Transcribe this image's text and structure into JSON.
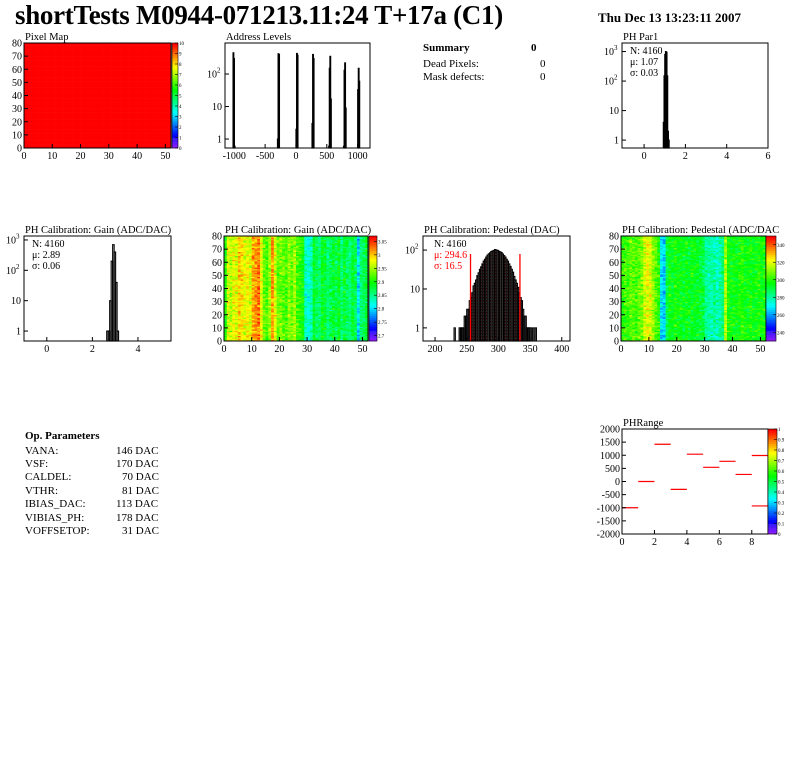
{
  "header": {
    "title": "shortTests M0944-071213.11:24 T+17a (C1)",
    "date": "Thu Dec 13 13:23:11 2007"
  },
  "summary": {
    "title": "Summary",
    "value": "0",
    "rows": [
      {
        "label": "Dead Pixels:",
        "value": "0"
      },
      {
        "label": "Mask defects:",
        "value": "0"
      }
    ]
  },
  "op_params": {
    "title": "Op. Parameters",
    "rows": [
      {
        "label": "VANA:",
        "value": "146 DAC"
      },
      {
        "label": "VSF:",
        "value": "170 DAC"
      },
      {
        "label": "CALDEL:",
        "value": "70 DAC"
      },
      {
        "label": "VTHR:",
        "value": "81 DAC"
      },
      {
        "label": "IBIAS_DAC:",
        "value": "113 DAC"
      },
      {
        "label": "VIBIAS_PH:",
        "value": "178 DAC"
      },
      {
        "label": "VOFFSETOP:",
        "value": "31 DAC"
      }
    ]
  },
  "chart_data": [
    {
      "id": "pixel_map",
      "type": "heatmap",
      "title": "Pixel Map",
      "xlim": [
        0,
        52
      ],
      "ylim": [
        0,
        80
      ],
      "zlim": [
        0,
        10
      ],
      "xticks": [
        "0",
        "10",
        "20",
        "30",
        "40",
        "50"
      ],
      "yticks": [
        "0",
        "10",
        "20",
        "30",
        "40",
        "50",
        "60",
        "70",
        "80"
      ],
      "zticks": [
        "0",
        "1",
        "2",
        "3",
        "4",
        "5",
        "6",
        "7",
        "8",
        "9",
        "10"
      ],
      "columns": 52,
      "rows": 80,
      "uniform_value": 10
    },
    {
      "id": "address_levels",
      "type": "bar",
      "title": "Address Levels",
      "log_y": true,
      "xlim": [
        -1150,
        1200
      ],
      "ylim": [
        0.53,
        900
      ],
      "xticks": [
        "-1000",
        "-500",
        "0",
        "500",
        "1000"
      ],
      "yticks": [
        {
          "v": 1,
          "b": "1",
          "e": ""
        },
        {
          "v": 10,
          "b": "10",
          "e": ""
        },
        {
          "v": 100,
          "b": "10",
          "e": "2"
        }
      ],
      "bin_width": 10,
      "bins": [
        [
          -1020,
          450
        ],
        [
          -1010,
          300
        ],
        [
          -1000,
          0.6
        ],
        [
          -300,
          1
        ],
        [
          -290,
          420
        ],
        [
          -280,
          400
        ],
        [
          0,
          2
        ],
        [
          10,
          430
        ],
        [
          20,
          380
        ],
        [
          260,
          3
        ],
        [
          270,
          400
        ],
        [
          280,
          300
        ],
        [
          530,
          0.6
        ],
        [
          540,
          150
        ],
        [
          550,
          350
        ],
        [
          560,
          17
        ],
        [
          770,
          0.6
        ],
        [
          780,
          130
        ],
        [
          790,
          220
        ],
        [
          800,
          9
        ],
        [
          1000,
          33
        ],
        [
          1010,
          150
        ],
        [
          1020,
          60
        ]
      ]
    },
    {
      "id": "ph_par1",
      "type": "bar",
      "title": "PH Par1",
      "log_y": true,
      "xlim": [
        -1.07,
        6
      ],
      "ylim": [
        0.54,
        1950
      ],
      "xticks": [
        "0",
        "2",
        "4",
        "6"
      ],
      "yticks": [
        {
          "v": 1,
          "b": "1",
          "e": ""
        },
        {
          "v": 10,
          "b": "10",
          "e": ""
        },
        {
          "v": 100,
          "b": "10",
          "e": "2"
        },
        {
          "v": 1000,
          "b": "10",
          "e": "3"
        }
      ],
      "stats": [
        "N: 4160",
        "μ: 1.07",
        "σ: 0.03"
      ],
      "bin_width": 0.035,
      "bins": [
        [
          0.93,
          4
        ],
        [
          0.965,
          150
        ],
        [
          1.0,
          800
        ],
        [
          1.035,
          1000
        ],
        [
          1.07,
          950
        ],
        [
          1.105,
          150
        ],
        [
          1.14,
          2
        ],
        [
          1.175,
          1
        ]
      ]
    },
    {
      "id": "gain_hist",
      "type": "bar",
      "title": "PH Calibration: Gain (ADC/DAC)",
      "log_y": true,
      "xlim": [
        -1,
        5.45
      ],
      "ylim": [
        0.47,
        1350
      ],
      "xticks": [
        "0",
        "2",
        "4"
      ],
      "yticks": [
        {
          "v": 1,
          "b": "1",
          "e": ""
        },
        {
          "v": 10,
          "b": "10",
          "e": ""
        },
        {
          "v": 100,
          "b": "10",
          "e": "2"
        },
        {
          "v": 1000,
          "b": "10",
          "e": "3"
        }
      ],
      "stats": [
        "N: 4160",
        "μ: 2.89",
        "σ: 0.06"
      ],
      "bin_width": 0.065,
      "bins": [
        [
          2.63,
          1
        ],
        [
          2.695,
          1
        ],
        [
          2.76,
          10
        ],
        [
          2.825,
          200
        ],
        [
          2.89,
          700
        ],
        [
          2.955,
          400
        ],
        [
          3.02,
          40
        ],
        [
          3.085,
          1
        ]
      ]
    },
    {
      "id": "gain_map",
      "type": "heatmap",
      "title": "PH Calibration: Gain (ADC/DAC)",
      "xlim": [
        0,
        52
      ],
      "ylim": [
        0,
        80
      ],
      "zlim": [
        2.68,
        3.07
      ],
      "xticks": [
        "0",
        "10",
        "20",
        "30",
        "40",
        "50"
      ],
      "yticks": [
        "0",
        "10",
        "20",
        "30",
        "40",
        "50",
        "60",
        "70",
        "80"
      ],
      "zticks": [
        "2.7",
        "2.75",
        "2.8",
        "2.85",
        "2.9",
        "2.95",
        "3",
        "3.05"
      ],
      "columns": 52,
      "rows": 80,
      "column_means": [
        2.9,
        2.97,
        2.96,
        2.98,
        2.97,
        3.0,
        2.99,
        2.97,
        2.98,
        2.97,
        3.01,
        3.02,
        3.03,
        2.98,
        2.93,
        2.92,
        2.95,
        3.02,
        2.97,
        2.93,
        2.94,
        2.93,
        2.92,
        2.94,
        2.93,
        2.95,
        2.92,
        2.91,
        2.9,
        2.83,
        2.82,
        2.84,
        2.88,
        2.87,
        2.86,
        2.89,
        2.88,
        2.86,
        2.87,
        2.88,
        2.87,
        2.89,
        2.86,
        2.88,
        2.87,
        2.86,
        2.88,
        2.87,
        2.8,
        2.86,
        2.87,
        2.88
      ]
    },
    {
      "id": "pedestal_hist",
      "type": "bar",
      "title": "PH Calibration: Pedestal (DAC)",
      "log_y": true,
      "xlim": [
        181,
        413
      ],
      "ylim": [
        0.46,
        230
      ],
      "xticks": [
        "200",
        "250",
        "300",
        "350",
        "400"
      ],
      "yticks": [
        {
          "v": 1,
          "b": "1",
          "e": ""
        },
        {
          "v": 10,
          "b": "10",
          "e": ""
        },
        {
          "v": 100,
          "b": "10",
          "e": "2"
        }
      ],
      "stats": [
        "N: 4160",
        "μ: 294.6",
        "σ: 16.5"
      ],
      "fit_range": [
        256,
        334
      ],
      "bin_width": 2,
      "bins": [
        [
          230,
          1
        ],
        [
          238,
          1
        ],
        [
          240,
          1
        ],
        [
          242,
          1
        ],
        [
          244,
          1
        ],
        [
          246,
          2
        ],
        [
          248,
          2
        ],
        [
          250,
          3
        ],
        [
          252,
          3
        ],
        [
          254,
          5
        ],
        [
          256,
          6
        ],
        [
          258,
          8
        ],
        [
          260,
          12
        ],
        [
          262,
          14
        ],
        [
          264,
          17
        ],
        [
          266,
          22
        ],
        [
          268,
          26
        ],
        [
          270,
          32
        ],
        [
          272,
          37
        ],
        [
          274,
          44
        ],
        [
          276,
          52
        ],
        [
          278,
          58
        ],
        [
          280,
          66
        ],
        [
          282,
          74
        ],
        [
          284,
          80
        ],
        [
          286,
          85
        ],
        [
          288,
          92
        ],
        [
          290,
          95
        ],
        [
          292,
          98
        ],
        [
          294,
          103
        ],
        [
          296,
          100
        ],
        [
          298,
          98
        ],
        [
          300,
          93
        ],
        [
          302,
          90
        ],
        [
          304,
          86
        ],
        [
          306,
          79
        ],
        [
          308,
          72
        ],
        [
          310,
          66
        ],
        [
          312,
          58
        ],
        [
          314,
          52
        ],
        [
          316,
          44
        ],
        [
          318,
          38
        ],
        [
          320,
          32
        ],
        [
          322,
          27
        ],
        [
          324,
          21
        ],
        [
          326,
          17
        ],
        [
          328,
          14
        ],
        [
          330,
          11
        ],
        [
          332,
          8
        ],
        [
          334,
          6
        ],
        [
          336,
          5
        ],
        [
          338,
          3
        ],
        [
          340,
          2
        ],
        [
          342,
          2
        ],
        [
          344,
          1
        ],
        [
          346,
          1
        ],
        [
          348,
          1
        ],
        [
          350,
          1
        ],
        [
          354,
          1
        ],
        [
          358,
          1
        ]
      ]
    },
    {
      "id": "pedestal_map",
      "type": "heatmap",
      "title": "PH Calibration: Pedestal (ADC/DAC",
      "xlim": [
        0,
        52
      ],
      "ylim": [
        0,
        80
      ],
      "zlim": [
        230,
        350
      ],
      "xticks": [
        "0",
        "10",
        "20",
        "30",
        "40",
        "50"
      ],
      "yticks": [
        "0",
        "10",
        "20",
        "30",
        "40",
        "50",
        "60",
        "70",
        "80"
      ],
      "zticks": [
        "240",
        "260",
        "280",
        "300",
        "320",
        "340"
      ],
      "columns": 52,
      "rows": 80,
      "column_means": [
        300,
        305,
        302,
        306,
        304,
        303,
        307,
        310,
        318,
        322,
        320,
        312,
        306,
        300,
        268,
        265,
        290,
        296,
        294,
        298,
        296,
        295,
        294,
        297,
        293,
        296,
        295,
        294,
        292,
        290,
        282,
        280,
        279,
        281,
        278,
        280,
        283,
        315,
        298,
        296,
        297,
        295,
        298,
        300,
        297,
        296,
        298,
        295,
        297,
        299,
        296,
        298
      ]
    },
    {
      "id": "phrange",
      "type": "scatter",
      "title": "PHRange",
      "xlim": [
        0,
        9
      ],
      "ylim": [
        -2000,
        2000
      ],
      "zlim": [
        0,
        1
      ],
      "xticks": [
        "0",
        "2",
        "4",
        "6",
        "8"
      ],
      "yticks": [
        "-2000",
        "-1500",
        "-1000",
        "-500",
        "0",
        "500",
        "1000",
        "1500",
        "2000"
      ],
      "zticks": [
        "0",
        "0.1",
        "0.2",
        "0.3",
        "0.4",
        "0.5",
        "0.6",
        "0.7",
        "0.8",
        "0.9",
        "1"
      ],
      "segments": [
        [
          0,
          1,
          -1000
        ],
        [
          1,
          2,
          0
        ],
        [
          2,
          3,
          1420
        ],
        [
          3,
          4,
          -300
        ],
        [
          4,
          5,
          1040
        ],
        [
          5,
          6,
          540
        ],
        [
          6,
          7,
          770
        ],
        [
          7,
          8,
          270
        ],
        [
          8,
          9,
          990
        ],
        [
          8,
          9,
          -930
        ]
      ],
      "segment_color": "#ff0000"
    }
  ]
}
